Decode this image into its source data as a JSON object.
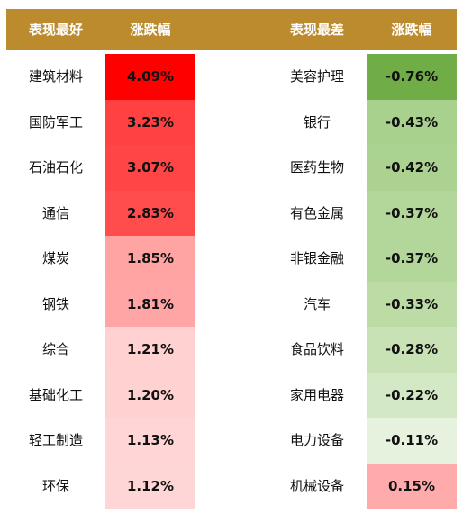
{
  "header": {
    "best_label": "表现最好",
    "best_change_label": "涨跌幅",
    "worst_label": "表现最差",
    "worst_change_label": "涨跌幅"
  },
  "colors": {
    "header_bg": "#bb8b2e",
    "header_text": "#ffffff"
  },
  "rows": [
    {
      "best_name": "建筑材料",
      "best_change": "4.09%",
      "best_color": "#ff0000",
      "worst_name": "美容护理",
      "worst_change": "-0.76%",
      "worst_color": "#70ad47"
    },
    {
      "best_name": "国防军工",
      "best_change": "3.23%",
      "best_color": "#ff4141",
      "worst_name": "银行",
      "worst_change": "-0.43%",
      "worst_color": "#a9d18e"
    },
    {
      "best_name": "石油石化",
      "best_change": "3.07%",
      "best_color": "#ff4545",
      "worst_name": "医药生物",
      "worst_change": "-0.42%",
      "worst_color": "#abd290"
    },
    {
      "best_name": "通信",
      "best_change": "2.83%",
      "best_color": "#ff4d4d",
      "worst_name": "有色金属",
      "worst_change": "-0.37%",
      "worst_color": "#b3d69a"
    },
    {
      "best_name": "煤炭",
      "best_change": "1.85%",
      "best_color": "#ffa3a3",
      "worst_name": "非银金融",
      "worst_change": "-0.37%",
      "worst_color": "#b3d69a"
    },
    {
      "best_name": "钢铁",
      "best_change": "1.81%",
      "best_color": "#ffa5a5",
      "worst_name": "汽车",
      "worst_change": "-0.33%",
      "worst_color": "#bcdba5"
    },
    {
      "best_name": "综合",
      "best_change": "1.21%",
      "best_color": "#ffd1d1",
      "worst_name": "食品饮料",
      "worst_change": "-0.28%",
      "worst_color": "#c8e2b6"
    },
    {
      "best_name": "基础化工",
      "best_change": "1.20%",
      "best_color": "#ffd2d2",
      "worst_name": "家用电器",
      "worst_change": "-0.22%",
      "worst_color": "#d3e8c5"
    },
    {
      "best_name": "轻工制造",
      "best_change": "1.13%",
      "best_color": "#ffd5d5",
      "worst_name": "电力设备",
      "worst_change": "-0.11%",
      "worst_color": "#e6f1de"
    },
    {
      "best_name": "环保",
      "best_change": "1.12%",
      "best_color": "#ffd6d6",
      "worst_name": "机械设备",
      "worst_change": "0.15%",
      "worst_color": "#ffabab"
    }
  ]
}
